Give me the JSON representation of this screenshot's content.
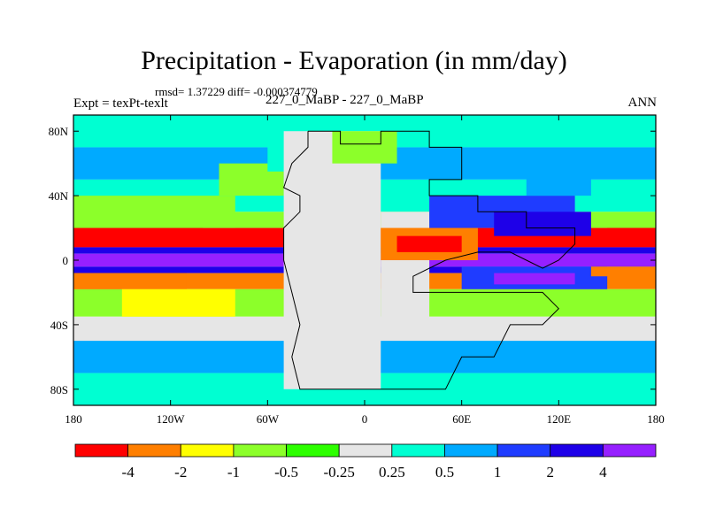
{
  "header": {
    "title": "Precipitation - Evaporation (in mm/day)",
    "stats": "rmsd= 1.37229 diff= -0.000374779",
    "experiment": "Expt = texPt-texlt",
    "comparison": "227_0_MaBP - 227_0_MaBP",
    "season": "ANN"
  },
  "chart_data": {
    "type": "heatmap",
    "title": "Precipitation - Evaporation (in mm/day)",
    "xlabel": "",
    "ylabel": "",
    "x_ticks": [
      {
        "value": -180,
        "label": "180"
      },
      {
        "value": -120,
        "label": "120W"
      },
      {
        "value": -60,
        "label": "60W"
      },
      {
        "value": 0,
        "label": "0"
      },
      {
        "value": 60,
        "label": "60E"
      },
      {
        "value": 120,
        "label": "120E"
      },
      {
        "value": 180,
        "label": "180"
      }
    ],
    "y_ticks": [
      {
        "value": 80,
        "label": "80N"
      },
      {
        "value": 40,
        "label": "40N"
      },
      {
        "value": 0,
        "label": "0"
      },
      {
        "value": -40,
        "label": "40S"
      },
      {
        "value": -80,
        "label": "80S"
      }
    ],
    "xlim": [
      -180,
      180
    ],
    "ylim": [
      -90,
      90
    ],
    "colorbar": {
      "levels": [
        "-4",
        "-2",
        "-1",
        "-0.5",
        "-0.25",
        "0.25",
        "0.5",
        "1",
        "2",
        "4"
      ],
      "colors": [
        "#ff0000",
        "#ff7f00",
        "#ffff00",
        "#8cff2a",
        "#2dff00",
        "#e6e6e6",
        "#00ffd2",
        "#00aaff",
        "#1f3cff",
        "#1e00e8",
        "#9620ff"
      ]
    },
    "bands": [
      {
        "lat": [
          70,
          90
        ],
        "bin": 6
      },
      {
        "lat": [
          50,
          70
        ],
        "bin": 7
      },
      {
        "lat": [
          30,
          50
        ],
        "bin": 6
      },
      {
        "lat": [
          20,
          30
        ],
        "bin": 3
      },
      {
        "lat": [
          8,
          20
        ],
        "bin": 0
      },
      {
        "lat": [
          4,
          8
        ],
        "bin": 9
      },
      {
        "lat": [
          -4,
          4
        ],
        "bin": 10
      },
      {
        "lat": [
          -8,
          -4
        ],
        "bin": 9
      },
      {
        "lat": [
          -18,
          -8
        ],
        "bin": 1
      },
      {
        "lat": [
          -35,
          -18
        ],
        "bin": 3
      },
      {
        "lat": [
          -50,
          -35
        ],
        "bin": 5
      },
      {
        "lat": [
          -70,
          -50
        ],
        "bin": 7
      },
      {
        "lat": [
          -90,
          -70
        ],
        "bin": 6
      }
    ],
    "regions": [
      {
        "lon": [
          -180,
          -100
        ],
        "lat": [
          12,
          20
        ],
        "bin": 0
      },
      {
        "lon": [
          -180,
          -110
        ],
        "lat": [
          -18,
          -8
        ],
        "bin": 1
      },
      {
        "lon": [
          -180,
          -80
        ],
        "lat": [
          20,
          40
        ],
        "bin": 3
      },
      {
        "lon": [
          -150,
          -80
        ],
        "lat": [
          -35,
          -18
        ],
        "bin": 2
      },
      {
        "lon": [
          -90,
          -50
        ],
        "lat": [
          40,
          60
        ],
        "bin": 3
      },
      {
        "lon": [
          -60,
          -20
        ],
        "lat": [
          55,
          75
        ],
        "bin": 6
      },
      {
        "lon": [
          -50,
          10
        ],
        "lat": [
          -80,
          80
        ],
        "bin": 5
      },
      {
        "lon": [
          -20,
          20
        ],
        "lat": [
          60,
          80
        ],
        "bin": 3
      },
      {
        "lon": [
          10,
          40
        ],
        "lat": [
          -40,
          30
        ],
        "bin": 5
      },
      {
        "lon": [
          10,
          70
        ],
        "lat": [
          0,
          20
        ],
        "bin": 1
      },
      {
        "lon": [
          20,
          60
        ],
        "lat": [
          5,
          15
        ],
        "bin": 0
      },
      {
        "lon": [
          60,
          120
        ],
        "lat": [
          -30,
          -18
        ],
        "bin": 3
      },
      {
        "lon": [
          40,
          130
        ],
        "lat": [
          20,
          40
        ],
        "bin": 8
      },
      {
        "lon": [
          80,
          140
        ],
        "lat": [
          15,
          30
        ],
        "bin": 9
      },
      {
        "lon": [
          60,
          150
        ],
        "lat": [
          -18,
          -4
        ],
        "bin": 8
      },
      {
        "lon": [
          80,
          130
        ],
        "lat": [
          -15,
          -8
        ],
        "bin": 10
      },
      {
        "lon": [
          150,
          180
        ],
        "lat": [
          10,
          20
        ],
        "bin": 0
      },
      {
        "lon": [
          140,
          180
        ],
        "lat": [
          -10,
          -4
        ],
        "bin": 1
      },
      {
        "lon": [
          100,
          140
        ],
        "lat": [
          40,
          60
        ],
        "bin": 7
      }
    ],
    "continent_outline": [
      [
        -35,
        80
      ],
      [
        -15,
        80
      ],
      [
        -15,
        72
      ],
      [
        10,
        72
      ],
      [
        10,
        80
      ],
      [
        40,
        80
      ],
      [
        40,
        70
      ],
      [
        60,
        70
      ],
      [
        60,
        50
      ],
      [
        40,
        50
      ],
      [
        40,
        40
      ],
      [
        70,
        40
      ],
      [
        70,
        30
      ],
      [
        100,
        30
      ],
      [
        100,
        20
      ],
      [
        130,
        20
      ],
      [
        130,
        10
      ],
      [
        120,
        0
      ],
      [
        110,
        -5
      ],
      [
        100,
        0
      ],
      [
        90,
        5
      ],
      [
        70,
        5
      ],
      [
        50,
        0
      ],
      [
        30,
        -10
      ],
      [
        30,
        -20
      ],
      [
        50,
        -20
      ],
      [
        80,
        -20
      ],
      [
        110,
        -20
      ],
      [
        120,
        -30
      ],
      [
        110,
        -40
      ],
      [
        90,
        -40
      ],
      [
        80,
        -60
      ],
      [
        60,
        -60
      ],
      [
        50,
        -80
      ],
      [
        -40,
        -80
      ],
      [
        -45,
        -60
      ],
      [
        -40,
        -40
      ],
      [
        -45,
        -20
      ],
      [
        -50,
        0
      ],
      [
        -50,
        20
      ],
      [
        -40,
        30
      ],
      [
        -40,
        40
      ],
      [
        -50,
        45
      ],
      [
        -45,
        60
      ],
      [
        -35,
        70
      ],
      [
        -35,
        80
      ]
    ]
  }
}
